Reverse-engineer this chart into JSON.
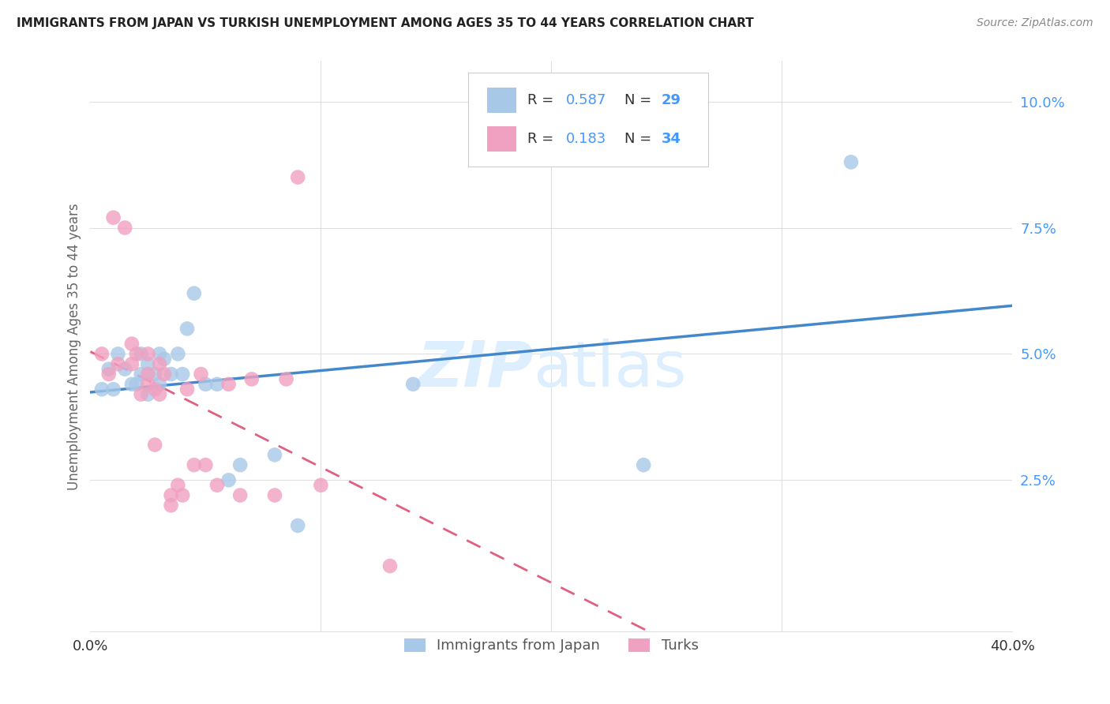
{
  "title": "IMMIGRANTS FROM JAPAN VS TURKISH UNEMPLOYMENT AMONG AGES 35 TO 44 YEARS CORRELATION CHART",
  "source": "Source: ZipAtlas.com",
  "ylabel": "Unemployment Among Ages 35 to 44 years",
  "ytick_labels": [
    "",
    "2.5%",
    "5.0%",
    "7.5%",
    "10.0%"
  ],
  "ytick_values": [
    0.0,
    0.025,
    0.05,
    0.075,
    0.1
  ],
  "xlim": [
    0.0,
    0.4
  ],
  "ylim": [
    -0.005,
    0.108
  ],
  "legend_r1": "0.587",
  "legend_n1": "29",
  "legend_r2": "0.183",
  "legend_n2": "34",
  "color_blue": "#a8c8e8",
  "color_pink": "#f0a0c0",
  "color_blue_line": "#4488cc",
  "color_pink_line": "#e06080",
  "color_blue_text": "#4499ff",
  "label1": "Immigrants from Japan",
  "label2": "Turks",
  "japan_x": [
    0.005,
    0.008,
    0.01,
    0.012,
    0.015,
    0.018,
    0.02,
    0.022,
    0.022,
    0.025,
    0.025,
    0.028,
    0.03,
    0.03,
    0.032,
    0.035,
    0.038,
    0.04,
    0.042,
    0.045,
    0.05,
    0.055,
    0.06,
    0.065,
    0.08,
    0.09,
    0.14,
    0.24,
    0.33
  ],
  "japan_y": [
    0.043,
    0.047,
    0.043,
    0.05,
    0.047,
    0.044,
    0.044,
    0.05,
    0.046,
    0.048,
    0.042,
    0.046,
    0.05,
    0.044,
    0.049,
    0.046,
    0.05,
    0.046,
    0.055,
    0.062,
    0.044,
    0.044,
    0.025,
    0.028,
    0.03,
    0.016,
    0.044,
    0.028,
    0.088
  ],
  "turks_x": [
    0.005,
    0.008,
    0.01,
    0.012,
    0.015,
    0.018,
    0.018,
    0.02,
    0.022,
    0.025,
    0.025,
    0.025,
    0.028,
    0.028,
    0.03,
    0.03,
    0.032,
    0.035,
    0.035,
    0.038,
    0.04,
    0.042,
    0.045,
    0.048,
    0.05,
    0.055,
    0.06,
    0.065,
    0.07,
    0.08,
    0.085,
    0.09,
    0.1,
    0.13
  ],
  "turks_y": [
    0.05,
    0.046,
    0.077,
    0.048,
    0.075,
    0.052,
    0.048,
    0.05,
    0.042,
    0.046,
    0.044,
    0.05,
    0.043,
    0.032,
    0.048,
    0.042,
    0.046,
    0.022,
    0.02,
    0.024,
    0.022,
    0.043,
    0.028,
    0.046,
    0.028,
    0.024,
    0.044,
    0.022,
    0.045,
    0.022,
    0.045,
    0.085,
    0.024,
    0.008
  ],
  "watermark_zip": "ZIP",
  "watermark_atlas": "atlas",
  "watermark_color": "#ddeeff",
  "grid_color": "#e0e0e0",
  "background": "#ffffff",
  "xtick_positions": [
    0.0,
    0.1,
    0.2,
    0.3,
    0.4
  ],
  "xtick_labels": [
    "0.0%",
    "",
    "",
    "",
    "40.0%"
  ]
}
